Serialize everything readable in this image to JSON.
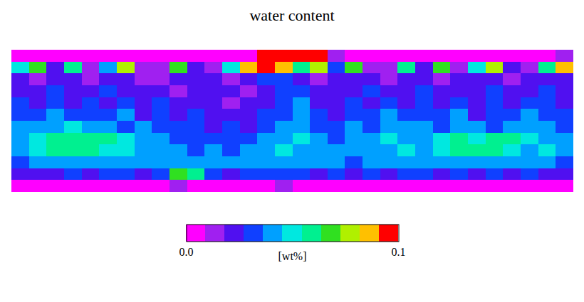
{
  "chart_data": {
    "type": "heatmap",
    "title": "water content",
    "colorbar_title": "[wt%]",
    "zlim": [
      0,
      0.1
    ],
    "zticks": [
      {
        "value": 0,
        "label": "0.0"
      },
      0.1
    ],
    "colors": [
      "#ff00ff",
      "#a020f0",
      "#5010f0",
      "#1040ff",
      "#00a0ff",
      "#00e8e0",
      "#00f090",
      "#30e020",
      "#b0f000",
      "#ffc000",
      "#ff0000"
    ],
    "tick_labels": false,
    "cells": [
      [
        0.008,
        0.005,
        0.005,
        0.005,
        0.005,
        0.005,
        0.005,
        0.005,
        0.005,
        0.005,
        0.005,
        0.005,
        0.005,
        0.008,
        0.1,
        0.1,
        0.1,
        0.1,
        0.01,
        0.008,
        0.005,
        0.005,
        0.005,
        0.005,
        0.005,
        0.005,
        0.005,
        0.005,
        0.005,
        0.005,
        0.005,
        0.01
      ],
      [
        0.05,
        0.07,
        0.02,
        0.06,
        0.01,
        0.04,
        0.08,
        0.015,
        0.01,
        0.07,
        0.02,
        0.015,
        0.05,
        0.09,
        0.1,
        0.09,
        0.06,
        0.08,
        0.03,
        0.07,
        0.015,
        0.01,
        0.06,
        0.02,
        0.07,
        0.015,
        0.05,
        0.08,
        0.02,
        0.01,
        0.06,
        0.09
      ],
      [
        0.02,
        0.015,
        0.025,
        0.02,
        0.015,
        0.025,
        0.02,
        0.015,
        0.01,
        0.02,
        0.025,
        0.02,
        0.015,
        0.025,
        0.03,
        0.035,
        0.02,
        0.015,
        0.02,
        0.025,
        0.02,
        0.015,
        0.025,
        0.02,
        0.015,
        0.02,
        0.025,
        0.02,
        0.015,
        0.02,
        0.025,
        0.02
      ],
      [
        0.025,
        0.02,
        0.03,
        0.02,
        0.025,
        0.03,
        0.02,
        0.025,
        0.02,
        0.015,
        0.02,
        0.025,
        0.02,
        0.015,
        0.02,
        0.03,
        0.035,
        0.02,
        0.025,
        0.02,
        0.03,
        0.02,
        0.025,
        0.03,
        0.02,
        0.025,
        0.02,
        0.03,
        0.025,
        0.02,
        0.03,
        0.025
      ],
      [
        0.03,
        0.025,
        0.035,
        0.025,
        0.03,
        0.02,
        0.035,
        0.025,
        0.03,
        0.02,
        0.02,
        0.025,
        0.015,
        0.02,
        0.025,
        0.035,
        0.04,
        0.025,
        0.02,
        0.03,
        0.025,
        0.035,
        0.02,
        0.03,
        0.025,
        0.035,
        0.02,
        0.03,
        0.025,
        0.035,
        0.03,
        0.025
      ],
      [
        0.035,
        0.03,
        0.04,
        0.03,
        0.035,
        0.03,
        0.04,
        0.025,
        0.035,
        0.025,
        0.03,
        0.02,
        0.025,
        0.02,
        0.03,
        0.035,
        0.04,
        0.03,
        0.025,
        0.035,
        0.03,
        0.04,
        0.03,
        0.035,
        0.03,
        0.04,
        0.025,
        0.035,
        0.03,
        0.04,
        0.035,
        0.03
      ],
      [
        0.04,
        0.045,
        0.04,
        0.05,
        0.045,
        0.04,
        0.035,
        0.04,
        0.03,
        0.035,
        0.03,
        0.025,
        0.03,
        0.025,
        0.035,
        0.04,
        0.045,
        0.035,
        0.03,
        0.04,
        0.035,
        0.04,
        0.045,
        0.04,
        0.035,
        0.045,
        0.04,
        0.035,
        0.04,
        0.045,
        0.04,
        0.035
      ],
      [
        0.045,
        0.05,
        0.055,
        0.055,
        0.06,
        0.055,
        0.05,
        0.045,
        0.04,
        0.035,
        0.03,
        0.035,
        0.03,
        0.035,
        0.04,
        0.045,
        0.05,
        0.04,
        0.035,
        0.04,
        0.045,
        0.05,
        0.045,
        0.04,
        0.05,
        0.055,
        0.05,
        0.055,
        0.06,
        0.05,
        0.045,
        0.04
      ],
      [
        0.04,
        0.05,
        0.055,
        0.06,
        0.055,
        0.05,
        0.05,
        0.045,
        0.04,
        0.045,
        0.035,
        0.04,
        0.035,
        0.04,
        0.045,
        0.05,
        0.045,
        0.04,
        0.04,
        0.045,
        0.04,
        0.045,
        0.05,
        0.045,
        0.05,
        0.055,
        0.06,
        0.055,
        0.05,
        0.045,
        0.05,
        0.04
      ],
      [
        0.035,
        0.04,
        0.045,
        0.045,
        0.04,
        0.045,
        0.04,
        0.04,
        0.045,
        0.04,
        0.045,
        0.04,
        0.04,
        0.045,
        0.04,
        0.04,
        0.045,
        0.04,
        0.04,
        0.035,
        0.04,
        0.045,
        0.04,
        0.04,
        0.045,
        0.04,
        0.04,
        0.045,
        0.04,
        0.04,
        0.04,
        0.035
      ],
      [
        0.02,
        0.025,
        0.025,
        0.03,
        0.025,
        0.03,
        0.03,
        0.025,
        0.03,
        0.07,
        0.06,
        0.03,
        0.025,
        0.03,
        0.03,
        0.035,
        0.03,
        0.025,
        0.03,
        0.025,
        0.03,
        0.025,
        0.03,
        0.03,
        0.025,
        0.03,
        0.025,
        0.03,
        0.025,
        0.03,
        0.025,
        0.02
      ],
      [
        0.008,
        0.006,
        0.005,
        0.006,
        0.008,
        0.006,
        0.005,
        0.006,
        0.008,
        0.01,
        0.008,
        0.006,
        0.005,
        0.006,
        0.008,
        0.01,
        0.008,
        0.006,
        0.005,
        0.006,
        0.008,
        0.006,
        0.005,
        0.006,
        0.008,
        0.006,
        0.005,
        0.006,
        0.008,
        0.006,
        0.005,
        0.008
      ]
    ]
  }
}
